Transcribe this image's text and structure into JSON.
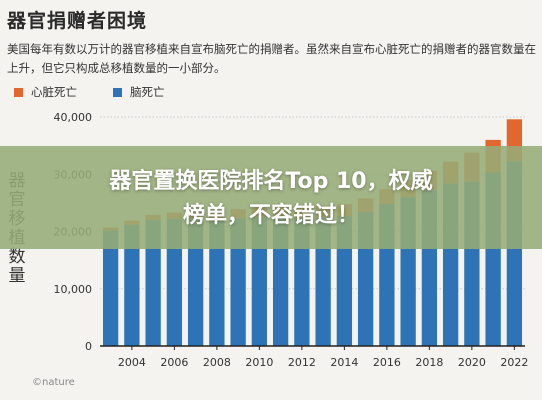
{
  "header": {
    "title": "器官捐赠者困境",
    "subtitle": "美国每年有数以万计的器官移植来自宣布脑死亡的捐赠者。虽然来自宣布心脏死亡的捐赠者的器官数量在上升，但它只构成总移植数量的一小部分。"
  },
  "legend": {
    "items": [
      {
        "label": "心脏死亡",
        "color": "#e2672f"
      },
      {
        "label": "脑死亡",
        "color": "#2d73b5"
      }
    ]
  },
  "axis": {
    "ylabel": "器官移植数量"
  },
  "credit": "©nature",
  "overlay": {
    "line1": "器官置换医院排名Top 10，权威",
    "line2": "榜单，不容错过！"
  },
  "colors": {
    "cardiac": "#e2672f",
    "brain": "#2d73b5",
    "axis": "#222222"
  },
  "chart_data": {
    "type": "bar",
    "stacked": true,
    "x": [
      2003,
      2004,
      2005,
      2006,
      2007,
      2008,
      2009,
      2010,
      2011,
      2012,
      2013,
      2014,
      2015,
      2016,
      2017,
      2018,
      2019,
      2020,
      2021,
      2022
    ],
    "x_tick_labels": [
      "2004",
      "2006",
      "2008",
      "2010",
      "2012",
      "2014",
      "2016",
      "2018",
      "2020",
      "2022"
    ],
    "series": [
      {
        "name": "脑死亡",
        "values": [
          20200,
          21200,
          22000,
          22200,
          22300,
          22100,
          22300,
          22500,
          22400,
          22300,
          22500,
          22700,
          23400,
          24800,
          26000,
          27200,
          28400,
          28700,
          30300,
          32300
        ]
      },
      {
        "name": "心脏死亡",
        "values": [
          500,
          700,
          900,
          1100,
          1300,
          1500,
          1600,
          1700,
          1800,
          1900,
          2000,
          2100,
          2400,
          2600,
          3000,
          3400,
          3800,
          5100,
          5700,
          7300
        ]
      }
    ],
    "yticks": [
      0,
      10000,
      20000,
      30000,
      40000
    ],
    "ytick_labels": [
      "0",
      "10,000",
      "20,000",
      "30,000",
      "40,000"
    ],
    "ylim": [
      0,
      40000
    ],
    "ylabel": "器官移植数量",
    "grid": true,
    "legend_position": "top-left"
  }
}
